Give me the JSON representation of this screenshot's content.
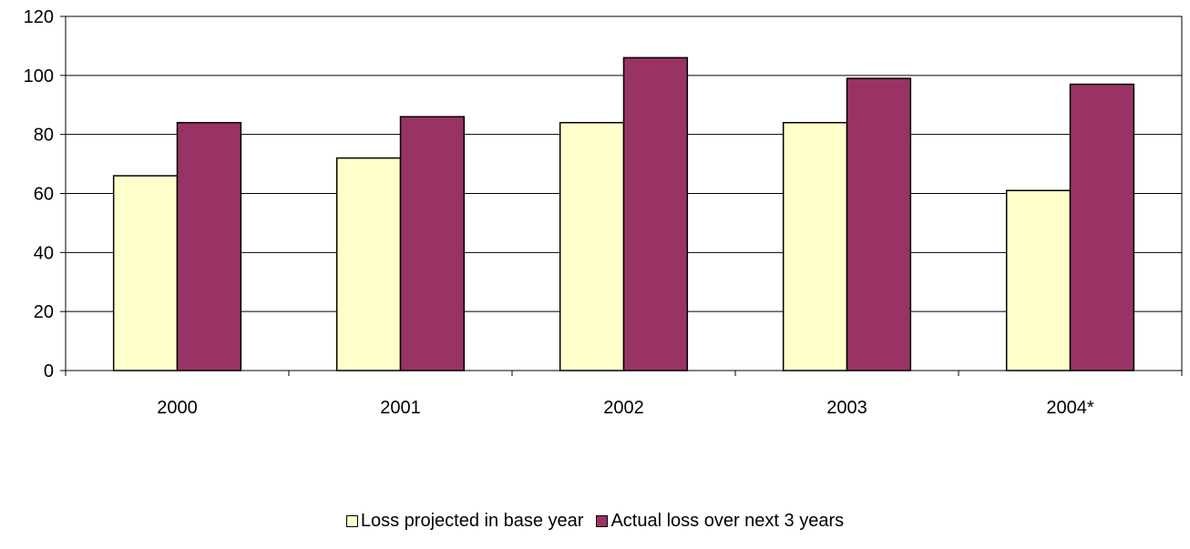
{
  "chart_data": {
    "type": "bar",
    "title": "",
    "xlabel": "",
    "ylabel": "",
    "categories": [
      "2000",
      "2001",
      "2002",
      "2003",
      "2004*"
    ],
    "series": [
      {
        "name": "Loss projected in base year",
        "color": "#FFFFCC",
        "values": [
          66,
          72,
          84,
          84,
          61
        ]
      },
      {
        "name": "Actual loss over next 3 years",
        "color": "#993366",
        "values": [
          84,
          86,
          106,
          99,
          97
        ]
      }
    ],
    "ylim": [
      0,
      120
    ],
    "yticks": [
      0,
      20,
      40,
      60,
      80,
      100,
      120
    ],
    "grid": true,
    "legend": "bottom"
  }
}
